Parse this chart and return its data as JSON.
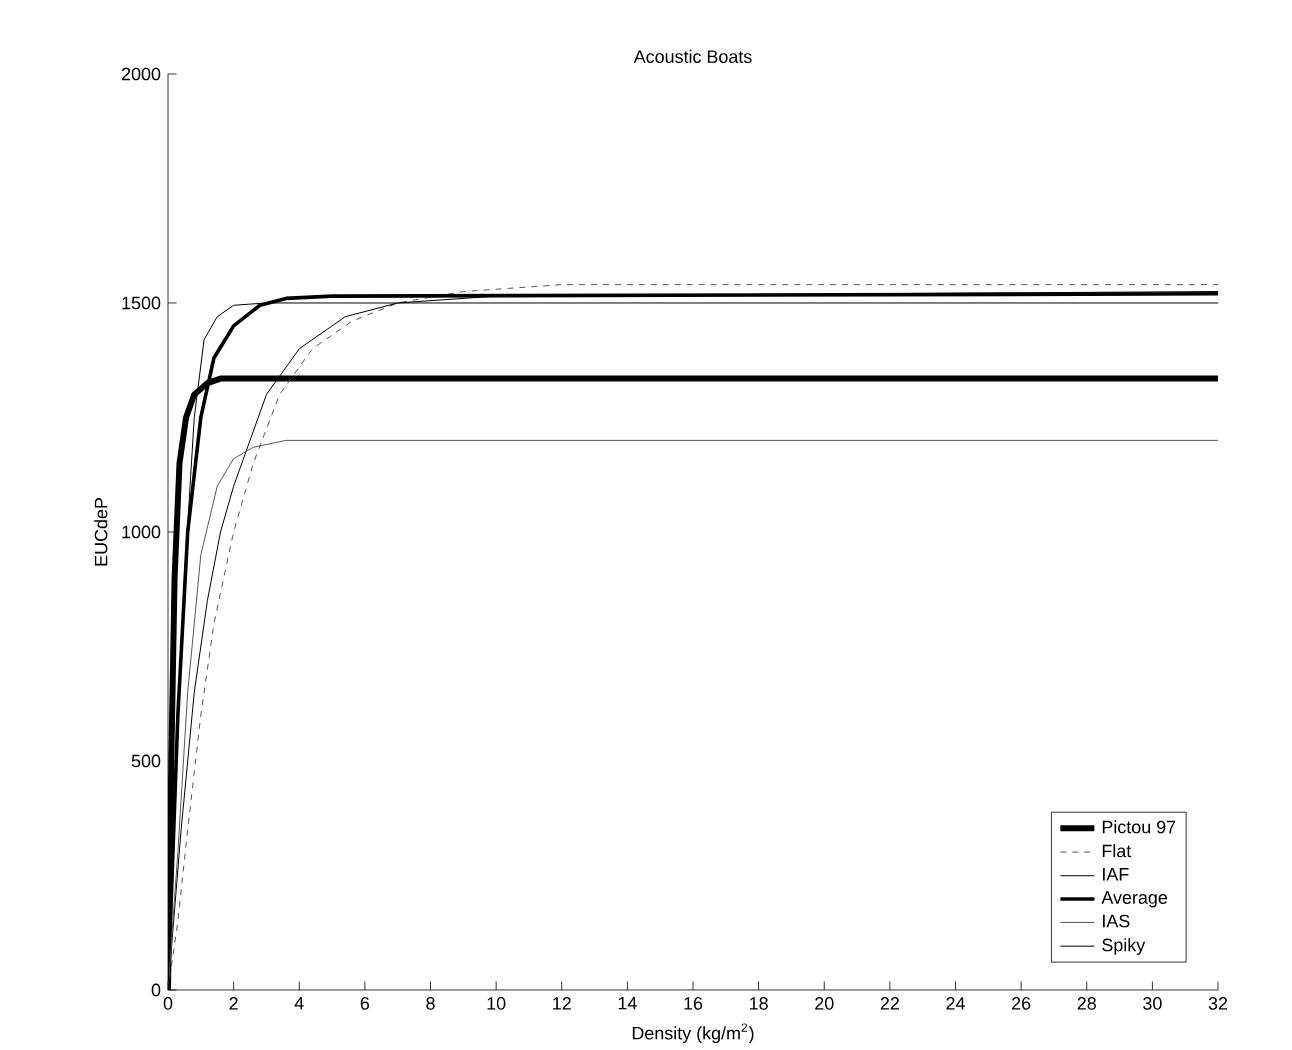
{
  "chart_data": {
    "type": "line",
    "title": "Acoustic Boats",
    "xlabel": "Density (kg/m$^{2}$)",
    "ylabel": "EUCdeP",
    "xlim": [
      0,
      32
    ],
    "xticks": [
      0,
      2,
      4,
      6,
      8,
      10,
      12,
      14,
      16,
      18,
      20,
      22,
      24,
      26,
      28,
      30,
      32
    ],
    "ylim": [
      0,
      2000
    ],
    "yticks": [
      0,
      500,
      1000,
      1500,
      2000
    ],
    "grid": false,
    "legend": "bottom right",
    "marker": "none",
    "series": [
      {
        "name": "Pictou 97",
        "color": "#000000",
        "line_style": "solid",
        "x": [
          0,
          0.1,
          0.2,
          0.35,
          0.55,
          0.8,
          1.2,
          1.6,
          32
        ],
        "values": [
          0,
          500,
          900,
          1150,
          1250,
          1300,
          1325,
          1335,
          1335
        ]
      },
      {
        "name": "Flat",
        "color": "#555555",
        "line_style": "dashed",
        "x": [
          0,
          0.3,
          0.6,
          1.0,
          1.4,
          2.0,
          2.6,
          3.4,
          4.4,
          5.6,
          7,
          9,
          12,
          32
        ],
        "values": [
          0,
          150,
          350,
          600,
          800,
          1000,
          1150,
          1300,
          1400,
          1460,
          1500,
          1525,
          1540,
          1540
        ]
      },
      {
        "name": "IAF",
        "color": "#000000",
        "line_style": "solid",
        "x": [
          0,
          0.4,
          0.8,
          1.2,
          1.6,
          2.0,
          3,
          4,
          5.4,
          7,
          10,
          32
        ],
        "values": [
          0,
          350,
          650,
          850,
          1000,
          1100,
          1300,
          1400,
          1470,
          1500,
          1515,
          1525
        ]
      },
      {
        "name": "Average",
        "color": "#000000",
        "line_style": "solid",
        "x": [
          0,
          0.3,
          0.6,
          1.0,
          1.4,
          2.0,
          2.8,
          3.6,
          5,
          32
        ],
        "values": [
          0,
          600,
          1000,
          1250,
          1380,
          1450,
          1495,
          1510,
          1515,
          1520
        ]
      },
      {
        "name": "IAS",
        "color": "#555555",
        "line_style": "solid",
        "x": [
          0,
          0.3,
          0.6,
          1.0,
          1.5,
          2.0,
          2.6,
          3.6,
          32
        ],
        "values": [
          0,
          300,
          650,
          950,
          1100,
          1160,
          1185,
          1200,
          1200
        ]
      },
      {
        "name": "Spiky",
        "color": "#000000",
        "line_style": "solid",
        "x": [
          0,
          0.2,
          0.5,
          0.8,
          1.1,
          1.5,
          2,
          3,
          32
        ],
        "values": [
          0,
          400,
          900,
          1250,
          1420,
          1470,
          1495,
          1500,
          1500
        ]
      }
    ]
  }
}
